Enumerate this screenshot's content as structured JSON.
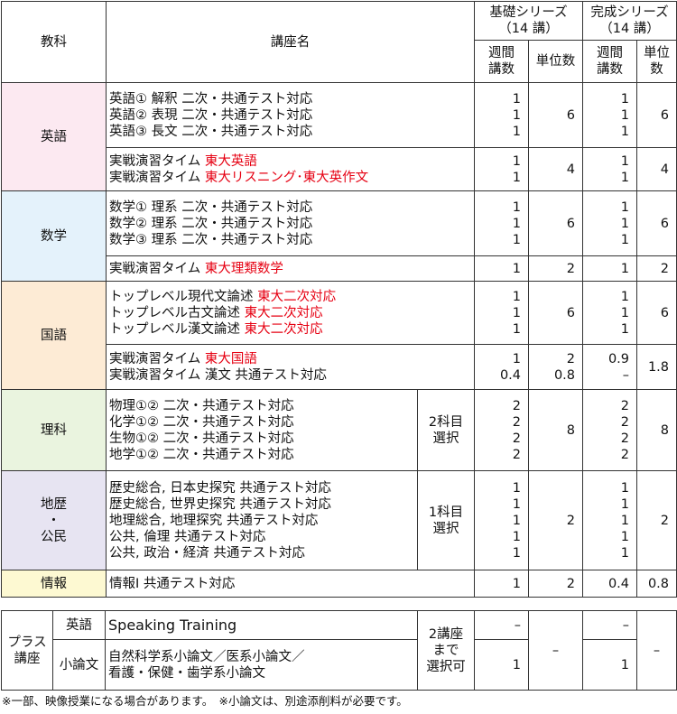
{
  "header": {
    "subject": "教科",
    "course": "講座名",
    "kiso": "基礎シリーズ\n（14 講）",
    "kansei": "完成シリーズ\n（14 講）",
    "weekly": "週間\n講数",
    "units": "単位数"
  },
  "colors": {
    "english": "#fce9f1",
    "math": "#e4f2fb",
    "japanese": "#fdebd5",
    "science": "#eaf4df",
    "social": "#e7e4f2",
    "info": "#fdf9d2",
    "red": "#e60012"
  },
  "subjects": [
    {
      "name": "英語",
      "color": "#fce9f1",
      "groups": [
        {
          "lines": [
            [
              {
                "t": "英語① 解釈 二次・共通テスト対応"
              }
            ],
            [
              {
                "t": "英語② 表現 二次・共通テスト対応"
              }
            ],
            [
              {
                "t": "英語③ 長文 二次・共通テスト対応"
              }
            ]
          ],
          "kw": "1\n1\n1",
          "ku": "6",
          "cw": "1\n1\n1",
          "cu": "6",
          "h": 72
        },
        {
          "lines": [
            [
              {
                "t": "実戦演習タイム "
              },
              {
                "t": "東大英語",
                "red": true
              }
            ],
            [
              {
                "t": "実戦演習タイム "
              },
              {
                "t": "東大リスニング･東大英作文",
                "red": true
              }
            ]
          ],
          "kw": "1\n1",
          "ku": "4",
          "cw": "1\n1",
          "cu": "4",
          "h": 48
        }
      ]
    },
    {
      "name": "数学",
      "color": "#e4f2fb",
      "groups": [
        {
          "lines": [
            [
              {
                "t": "数学① 理系 二次・共通テスト対応"
              }
            ],
            [
              {
                "t": "数学② 理系 二次・共通テスト対応"
              }
            ],
            [
              {
                "t": "数学③ 理系 二次・共通テスト対応"
              }
            ]
          ],
          "kw": "1\n1\n1",
          "ku": "6",
          "cw": "1\n1\n1",
          "cu": "6",
          "h": 72
        },
        {
          "lines": [
            [
              {
                "t": "実戦演習タイム "
              },
              {
                "t": "東大理類数学",
                "red": true
              }
            ]
          ],
          "kw": "1",
          "ku": "2",
          "cw": "1",
          "cu": "2",
          "h": 28
        }
      ]
    },
    {
      "name": "国語",
      "color": "#fdebd5",
      "groups": [
        {
          "lines": [
            [
              {
                "t": "トップレベル現代文論述 "
              },
              {
                "t": "東大二次対応",
                "red": true
              }
            ],
            [
              {
                "t": "トップレベル古文論述 "
              },
              {
                "t": "東大二次対応",
                "red": true
              }
            ],
            [
              {
                "t": "トップレベル漢文論述 "
              },
              {
                "t": "東大二次対応",
                "red": true
              }
            ]
          ],
          "kw": "1\n1\n1",
          "ku": "6",
          "cw": "1\n1\n1",
          "cu": "6",
          "h": 70
        },
        {
          "lines": [
            [
              {
                "t": "実戦演習タイム "
              },
              {
                "t": "東大国語",
                "red": true
              }
            ],
            [
              {
                "t": "実戦演習タイム 漢文 共通テスト対応"
              }
            ]
          ],
          "kw": "1\n0.4",
          "ku": "2\n0.8",
          "cw": "0.9\n–",
          "cu": "1.8",
          "h": 50
        }
      ]
    },
    {
      "name": "理科",
      "color": "#eaf4df",
      "note": "2科目\n選択",
      "groups": [
        {
          "lines": [
            [
              {
                "t": "物理①② 二次・共通テスト対応"
              }
            ],
            [
              {
                "t": "化学①② 二次・共通テスト対応"
              }
            ],
            [
              {
                "t": "生物①② 二次・共通テスト対応"
              }
            ],
            [
              {
                "t": "地学①② 二次・共通テスト対応"
              }
            ]
          ],
          "kw": "2\n2\n2\n2",
          "ku": "8",
          "cw": "2\n2\n2\n2",
          "cu": "8",
          "h": 90
        }
      ]
    },
    {
      "name": "地歴\n・\n公民",
      "color": "#e7e4f2",
      "note": "1科目\n選択",
      "groups": [
        {
          "lines": [
            [
              {
                "t": "歴史総合, 日本史探究 共通テスト対応"
              }
            ],
            [
              {
                "t": "歴史総合, 世界史探究 共通テスト対応"
              }
            ],
            [
              {
                "t": "地理総合, 地理探究 共通テスト対応"
              }
            ],
            [
              {
                "t": "公共, 倫理 共通テスト対応"
              }
            ],
            [
              {
                "t": "公共, 政治・経済 共通テスト対応"
              }
            ]
          ],
          "kw": "1\n1\n1\n1\n1",
          "ku": "2",
          "cw": "1\n1\n1\n1\n1",
          "cu": "2",
          "h": 110
        }
      ]
    },
    {
      "name": "情報",
      "color": "#fdf9d2",
      "groups": [
        {
          "lines": [
            [
              {
                "t": "情報Ⅰ 共通テスト対応"
              }
            ]
          ],
          "kw": "1",
          "ku": "2",
          "cw": "0.4",
          "cu": "0.8",
          "h": 30
        }
      ]
    }
  ],
  "plus": {
    "label": "プラス\n講座",
    "note": "2講座\nまで\n選択可",
    "rows": [
      {
        "subject": "英語",
        "course": "Speaking Training",
        "kw": "–",
        "cw": "–"
      },
      {
        "subject": "小論文",
        "course": "自然科学系小論文／医系小論文／\n看護・保健・歯学系小論文",
        "kw": "1",
        "cw": "1"
      }
    ],
    "ku": "–",
    "cu": "–"
  },
  "footnote": "※一部、映像授業になる場合があります。　※小論文は、別途添削料が必要です。"
}
